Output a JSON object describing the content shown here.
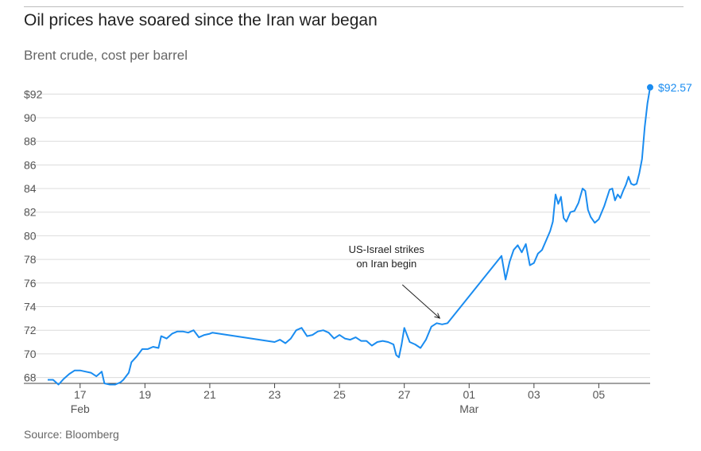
{
  "title": "Oil prices have soared since the Iran war began",
  "subtitle": "Brent crude, cost per barrel",
  "source": "Source: Bloomberg",
  "colors": {
    "line": "#1a8cf0",
    "grid": "#dcdcdc",
    "axis": "#444444"
  },
  "chart_data": {
    "type": "line",
    "title": "Oil prices have soared since the Iran war began",
    "subtitle": "Brent crude, cost per barrel",
    "xlabel": "",
    "ylabel": "",
    "unit": "USD per barrel",
    "ylim": [
      67.5,
      93.5
    ],
    "xlim": [
      "2026-02-16 00:00",
      "2026-03-06 14:00"
    ],
    "y_ticks": [
      {
        "value": 68,
        "label": "68"
      },
      {
        "value": 70,
        "label": "70"
      },
      {
        "value": 72,
        "label": "72"
      },
      {
        "value": 74,
        "label": "74"
      },
      {
        "value": 76,
        "label": "76"
      },
      {
        "value": 78,
        "label": "78"
      },
      {
        "value": 80,
        "label": "80"
      },
      {
        "value": 82,
        "label": "82"
      },
      {
        "value": 84,
        "label": "84"
      },
      {
        "value": 86,
        "label": "86"
      },
      {
        "value": 88,
        "label": "88"
      },
      {
        "value": 90,
        "label": "90"
      },
      {
        "value": 92,
        "label": "$92"
      }
    ],
    "x_ticks": [
      {
        "value": "2026-02-17 00:00",
        "label": "17",
        "sublabel": "Feb"
      },
      {
        "value": "2026-02-19 00:00",
        "label": "19"
      },
      {
        "value": "2026-02-21 00:00",
        "label": "21"
      },
      {
        "value": "2026-02-23 00:00",
        "label": "23"
      },
      {
        "value": "2026-02-25 00:00",
        "label": "25"
      },
      {
        "value": "2026-02-27 00:00",
        "label": "27"
      },
      {
        "value": "2026-03-01 00:00",
        "label": "01",
        "sublabel": "Mar"
      },
      {
        "value": "2026-03-03 00:00",
        "label": "03"
      },
      {
        "value": "2026-03-05 00:00",
        "label": "05"
      }
    ],
    "grid": true,
    "series": [
      {
        "end_label": "$92.57",
        "end_value": 92.57,
        "points": [
          [
            "2026-02-16 00:00",
            67.8
          ],
          [
            "2026-02-16 04:00",
            67.8
          ],
          [
            "2026-02-16 08:00",
            67.4
          ],
          [
            "2026-02-16 12:00",
            67.9
          ],
          [
            "2026-02-16 16:00",
            68.3
          ],
          [
            "2026-02-16 20:00",
            68.6
          ],
          [
            "2026-02-17 00:00",
            68.6
          ],
          [
            "2026-02-17 04:00",
            68.5
          ],
          [
            "2026-02-17 08:00",
            68.4
          ],
          [
            "2026-02-17 12:00",
            68.1
          ],
          [
            "2026-02-17 16:00",
            68.5
          ],
          [
            "2026-02-17 18:00",
            67.5
          ],
          [
            "2026-02-17 22:00",
            67.4
          ],
          [
            "2026-02-18 02:00",
            67.4
          ],
          [
            "2026-02-18 06:00",
            67.6
          ],
          [
            "2026-02-18 08:00",
            67.8
          ],
          [
            "2026-02-18 12:00",
            68.4
          ],
          [
            "2026-02-18 14:00",
            69.3
          ],
          [
            "2026-02-18 18:00",
            69.8
          ],
          [
            "2026-02-18 22:00",
            70.4
          ],
          [
            "2026-02-19 02:00",
            70.4
          ],
          [
            "2026-02-19 06:00",
            70.6
          ],
          [
            "2026-02-19 10:00",
            70.5
          ],
          [
            "2026-02-19 12:00",
            71.5
          ],
          [
            "2026-02-19 16:00",
            71.3
          ],
          [
            "2026-02-19 20:00",
            71.7
          ],
          [
            "2026-02-20 00:00",
            71.9
          ],
          [
            "2026-02-20 04:00",
            71.9
          ],
          [
            "2026-02-20 08:00",
            71.8
          ],
          [
            "2026-02-20 12:00",
            72.0
          ],
          [
            "2026-02-20 16:00",
            71.4
          ],
          [
            "2026-02-20 20:00",
            71.6
          ],
          [
            "2026-02-21 00:00",
            71.7
          ],
          [
            "2026-02-21 02:00",
            71.8
          ],
          [
            "2026-02-23 00:00",
            71.0
          ],
          [
            "2026-02-23 04:00",
            71.2
          ],
          [
            "2026-02-23 08:00",
            70.9
          ],
          [
            "2026-02-23 12:00",
            71.3
          ],
          [
            "2026-02-23 16:00",
            72.0
          ],
          [
            "2026-02-23 20:00",
            72.2
          ],
          [
            "2026-02-24 00:00",
            71.5
          ],
          [
            "2026-02-24 04:00",
            71.6
          ],
          [
            "2026-02-24 08:00",
            71.9
          ],
          [
            "2026-02-24 12:00",
            72.0
          ],
          [
            "2026-02-24 16:00",
            71.8
          ],
          [
            "2026-02-24 20:00",
            71.3
          ],
          [
            "2026-02-25 00:00",
            71.6
          ],
          [
            "2026-02-25 04:00",
            71.3
          ],
          [
            "2026-02-25 08:00",
            71.2
          ],
          [
            "2026-02-25 12:00",
            71.4
          ],
          [
            "2026-02-25 16:00",
            71.1
          ],
          [
            "2026-02-25 20:00",
            71.1
          ],
          [
            "2026-02-26 00:00",
            70.7
          ],
          [
            "2026-02-26 04:00",
            71.0
          ],
          [
            "2026-02-26 08:00",
            71.1
          ],
          [
            "2026-02-26 12:00",
            71.0
          ],
          [
            "2026-02-26 16:00",
            70.8
          ],
          [
            "2026-02-26 18:00",
            69.9
          ],
          [
            "2026-02-26 20:00",
            69.7
          ],
          [
            "2026-02-26 22:00",
            70.8
          ],
          [
            "2026-02-27 00:00",
            72.2
          ],
          [
            "2026-02-27 04:00",
            71.0
          ],
          [
            "2026-02-27 08:00",
            70.8
          ],
          [
            "2026-02-27 12:00",
            70.5
          ],
          [
            "2026-02-27 16:00",
            71.2
          ],
          [
            "2026-02-27 20:00",
            72.3
          ],
          [
            "2026-02-28 00:00",
            72.6
          ],
          [
            "2026-02-28 04:00",
            72.5
          ],
          [
            "2026-02-28 08:00",
            72.6
          ],
          [
            "2026-03-02 00:00",
            78.3
          ],
          [
            "2026-03-02 03:00",
            76.3
          ],
          [
            "2026-03-02 06:00",
            77.8
          ],
          [
            "2026-03-02 09:00",
            78.8
          ],
          [
            "2026-03-02 12:00",
            79.2
          ],
          [
            "2026-03-02 15:00",
            78.6
          ],
          [
            "2026-03-02 18:00",
            79.3
          ],
          [
            "2026-03-02 21:00",
            77.5
          ],
          [
            "2026-03-03 00:00",
            77.7
          ],
          [
            "2026-03-03 03:00",
            78.5
          ],
          [
            "2026-03-03 06:00",
            78.8
          ],
          [
            "2026-03-03 09:00",
            79.6
          ],
          [
            "2026-03-03 12:00",
            80.4
          ],
          [
            "2026-03-03 14:00",
            81.2
          ],
          [
            "2026-03-03 16:00",
            83.5
          ],
          [
            "2026-03-03 18:00",
            82.7
          ],
          [
            "2026-03-03 20:00",
            83.3
          ],
          [
            "2026-03-03 22:00",
            81.5
          ],
          [
            "2026-03-04 00:00",
            81.2
          ],
          [
            "2026-03-04 03:00",
            82.0
          ],
          [
            "2026-03-04 06:00",
            82.1
          ],
          [
            "2026-03-04 09:00",
            82.8
          ],
          [
            "2026-03-04 12:00",
            84.0
          ],
          [
            "2026-03-04 14:00",
            83.8
          ],
          [
            "2026-03-04 16:00",
            82.2
          ],
          [
            "2026-03-04 18:00",
            81.6
          ],
          [
            "2026-03-04 21:00",
            81.1
          ],
          [
            "2026-03-05 00:00",
            81.4
          ],
          [
            "2026-03-05 04:00",
            82.5
          ],
          [
            "2026-03-05 08:00",
            83.9
          ],
          [
            "2026-03-05 10:00",
            84.0
          ],
          [
            "2026-03-05 12:00",
            83.0
          ],
          [
            "2026-03-05 14:00",
            83.5
          ],
          [
            "2026-03-05 16:00",
            83.2
          ],
          [
            "2026-03-05 18:00",
            83.8
          ],
          [
            "2026-03-05 20:00",
            84.3
          ],
          [
            "2026-03-05 22:00",
            85.0
          ],
          [
            "2026-03-06 00:00",
            84.4
          ],
          [
            "2026-03-06 02:00",
            84.3
          ],
          [
            "2026-03-06 04:00",
            84.4
          ],
          [
            "2026-03-06 06:00",
            85.3
          ],
          [
            "2026-03-06 08:00",
            86.5
          ],
          [
            "2026-03-06 10:00",
            89.2
          ],
          [
            "2026-03-06 12:00",
            91.2
          ],
          [
            "2026-03-06 14:00",
            92.57
          ]
        ]
      }
    ],
    "annotations": [
      {
        "lines": [
          "US-Israel strikes",
          "on Iran begin"
        ],
        "x": "2026-02-28 04:00",
        "y": 72.55
      }
    ]
  }
}
